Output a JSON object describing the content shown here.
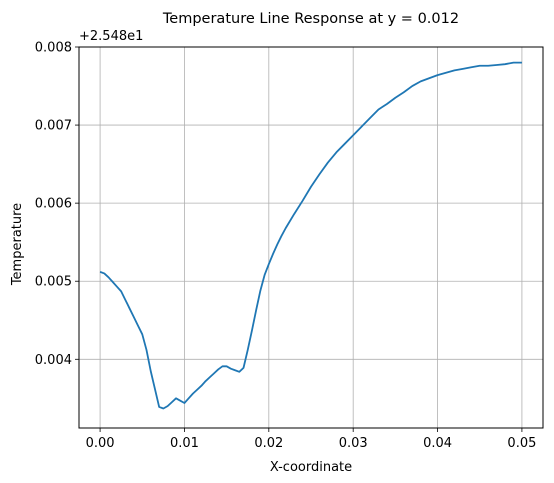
{
  "chart_data": {
    "type": "line",
    "title": "Temperature Line Response at y = 0.012",
    "xlabel": "X-coordinate",
    "ylabel": "Temperature",
    "offset_label": "+2.548e1",
    "xlim": [
      -0.0025,
      0.0525
    ],
    "ylim": [
      0.00312,
      0.008
    ],
    "xticks": [
      0.0,
      0.01,
      0.02,
      0.03,
      0.04,
      0.05
    ],
    "xtick_labels": [
      "0.00",
      "0.01",
      "0.02",
      "0.03",
      "0.04",
      "0.05"
    ],
    "yticks": [
      0.004,
      0.005,
      0.006,
      0.007,
      0.008
    ],
    "ytick_labels": [
      "0.004",
      "0.005",
      "0.006",
      "0.007",
      "0.008"
    ],
    "grid": true,
    "line_color": "#1f77b4",
    "series": [
      {
        "x": [
          0.0,
          0.0005,
          0.001,
          0.0015,
          0.002,
          0.0025,
          0.003,
          0.0035,
          0.004,
          0.0045,
          0.005,
          0.0055,
          0.006,
          0.0065,
          0.007,
          0.0075,
          0.008,
          0.0085,
          0.009,
          0.0095,
          0.01,
          0.0105,
          0.011,
          0.0115,
          0.012,
          0.0125,
          0.013,
          0.0135,
          0.014,
          0.0145,
          0.015,
          0.0155,
          0.016,
          0.0165,
          0.017,
          0.0175,
          0.018,
          0.0185,
          0.019,
          0.0195,
          0.02,
          0.0205,
          0.021,
          0.0215,
          0.022,
          0.023,
          0.024,
          0.025,
          0.026,
          0.027,
          0.028,
          0.029,
          0.03,
          0.031,
          0.032,
          0.033,
          0.034,
          0.035,
          0.036,
          0.037,
          0.038,
          0.039,
          0.04,
          0.041,
          0.042,
          0.043,
          0.044,
          0.045,
          0.046,
          0.047,
          0.048,
          0.049,
          0.05
        ],
        "y": [
          0.00512,
          0.0051,
          0.00505,
          0.00499,
          0.00493,
          0.00487,
          0.00476,
          0.00465,
          0.00454,
          0.00443,
          0.00432,
          0.00412,
          0.00385,
          0.00362,
          0.00339,
          0.00337,
          0.0034,
          0.00345,
          0.0035,
          0.00347,
          0.00344,
          0.0035,
          0.00356,
          0.00361,
          0.00366,
          0.00372,
          0.00377,
          0.00382,
          0.00387,
          0.00391,
          0.00391,
          0.00388,
          0.00386,
          0.00384,
          0.00389,
          0.00412,
          0.00437,
          0.00463,
          0.00488,
          0.00508,
          0.00522,
          0.00535,
          0.00547,
          0.00558,
          0.00568,
          0.00586,
          0.00603,
          0.00621,
          0.00637,
          0.00652,
          0.00665,
          0.00676,
          0.00687,
          0.00698,
          0.00709,
          0.0072,
          0.00727,
          0.00735,
          0.00742,
          0.0075,
          0.00756,
          0.0076,
          0.00764,
          0.00767,
          0.0077,
          0.00772,
          0.00774,
          0.00776,
          0.00776,
          0.00777,
          0.00778,
          0.0078,
          0.0078
        ]
      }
    ]
  }
}
